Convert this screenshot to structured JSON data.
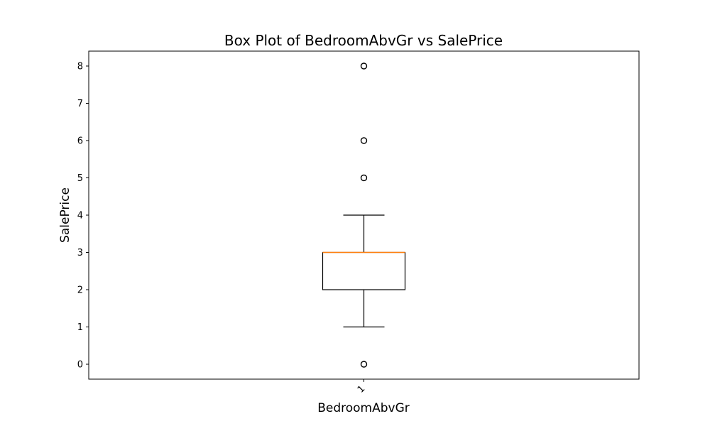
{
  "chart_data": {
    "type": "box",
    "title": "Box Plot of BedroomAbvGr vs SalePrice",
    "xlabel": "BedroomAbvGr",
    "ylabel": "SalePrice",
    "categories": [
      "1"
    ],
    "ylim": [
      -0.4,
      8.4
    ],
    "yticks": [
      0,
      1,
      2,
      3,
      4,
      5,
      6,
      7,
      8
    ],
    "grid": false,
    "boxes": [
      {
        "category": "1",
        "q1": 2,
        "median": 3,
        "q3": 3,
        "whisker_low": 1,
        "whisker_high": 4,
        "outliers": [
          0,
          5,
          6,
          8
        ]
      }
    ],
    "colors": {
      "box": "#000000",
      "median": "#ff7f0e",
      "outlier": "#000000"
    }
  }
}
